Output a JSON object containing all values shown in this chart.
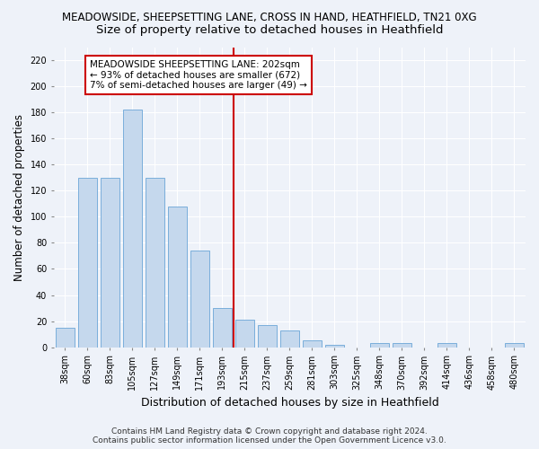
{
  "title": "MEADOWSIDE, SHEEPSETTING LANE, CROSS IN HAND, HEATHFIELD, TN21 0XG",
  "subtitle": "Size of property relative to detached houses in Heathfield",
  "xlabel": "Distribution of detached houses by size in Heathfield",
  "ylabel": "Number of detached properties",
  "categories": [
    "38sqm",
    "60sqm",
    "83sqm",
    "105sqm",
    "127sqm",
    "149sqm",
    "171sqm",
    "193sqm",
    "215sqm",
    "237sqm",
    "259sqm",
    "281sqm",
    "303sqm",
    "325sqm",
    "348sqm",
    "370sqm",
    "392sqm",
    "414sqm",
    "436sqm",
    "458sqm",
    "480sqm"
  ],
  "values": [
    15,
    130,
    130,
    182,
    130,
    108,
    74,
    30,
    21,
    17,
    13,
    5,
    2,
    0,
    3,
    3,
    0,
    3,
    0,
    0,
    3
  ],
  "bar_color": "#c5d8ed",
  "bar_edgecolor": "#7aaedb",
  "vline_x_index": 8,
  "vline_color": "#cc0000",
  "annotation_text": "MEADOWSIDE SHEEPSETTING LANE: 202sqm\n← 93% of detached houses are smaller (672)\n7% of semi-detached houses are larger (49) →",
  "annotation_box_edgecolor": "#cc0000",
  "annotation_box_facecolor": "#ffffff",
  "ylim": [
    0,
    230
  ],
  "yticks": [
    0,
    20,
    40,
    60,
    80,
    100,
    120,
    140,
    160,
    180,
    200,
    220
  ],
  "footer_line1": "Contains HM Land Registry data © Crown copyright and database right 2024.",
  "footer_line2": "Contains public sector information licensed under the Open Government Licence v3.0.",
  "bg_color": "#eef2f9",
  "plot_bg_color": "#eef2f9",
  "grid_color": "#ffffff",
  "title_fontsize": 8.5,
  "subtitle_fontsize": 9.5,
  "ylabel_fontsize": 8.5,
  "xlabel_fontsize": 9,
  "tick_fontsize": 7,
  "annotation_fontsize": 7.5,
  "footer_fontsize": 6.5
}
